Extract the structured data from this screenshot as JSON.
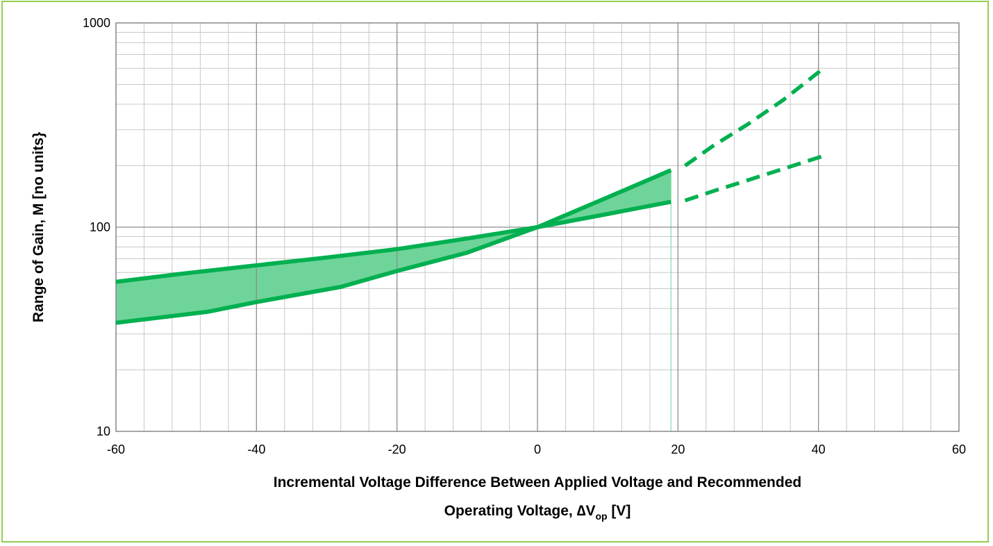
{
  "chart_data": {
    "type": "area",
    "x_scale": "linear",
    "y_scale": "log",
    "xlim": [
      -60,
      60
    ],
    "ylim": [
      10,
      1000
    ],
    "x_ticks": [
      "-60",
      "-40",
      "-20",
      "0",
      "20",
      "40",
      "60"
    ],
    "x_tick_values": [
      -60,
      -40,
      -20,
      0,
      20,
      40,
      60
    ],
    "y_ticks": [
      "1000",
      "100",
      "10"
    ],
    "y_tick_values": [
      1000,
      100,
      10
    ],
    "grid": true,
    "xlabel_line1": "Incremental Voltage Difference Between Applied Voltage and Recommended",
    "xlabel_line2_prefix": "Operating Voltage, ",
    "xlabel_delta": "∆",
    "xlabel_var": "V",
    "xlabel_sub": "op",
    "xlabel_unit": " [V]",
    "ylabel": "Range of Gain, M  [no units}",
    "band": {
      "x_range": [
        -60,
        19
      ],
      "fill_color": "#6fd499"
    },
    "series": [
      {
        "style": "solid",
        "color": "#00b050",
        "x": [
          -60,
          -50,
          -40,
          -30,
          -20,
          -10,
          0,
          10,
          19
        ],
        "values": [
          54,
          59.5,
          65,
          71,
          78,
          88,
          100,
          116,
          133
        ]
      },
      {
        "style": "solid",
        "color": "#00b050",
        "x": [
          -60,
          -47,
          -40,
          -28,
          -20,
          -10,
          0,
          10,
          19
        ],
        "values": [
          34,
          38.5,
          43,
          51,
          61,
          75,
          100,
          140,
          190
        ]
      },
      {
        "style": "dashed",
        "color": "#00b050",
        "x": [
          21,
          25,
          30,
          35,
          41
        ],
        "values": [
          200,
          250,
          320,
          420,
          610
        ]
      },
      {
        "style": "dashed",
        "color": "#00b050",
        "x": [
          21,
          25,
          30,
          35,
          41
        ],
        "values": [
          135,
          150,
          170,
          193,
          225
        ]
      }
    ]
  }
}
